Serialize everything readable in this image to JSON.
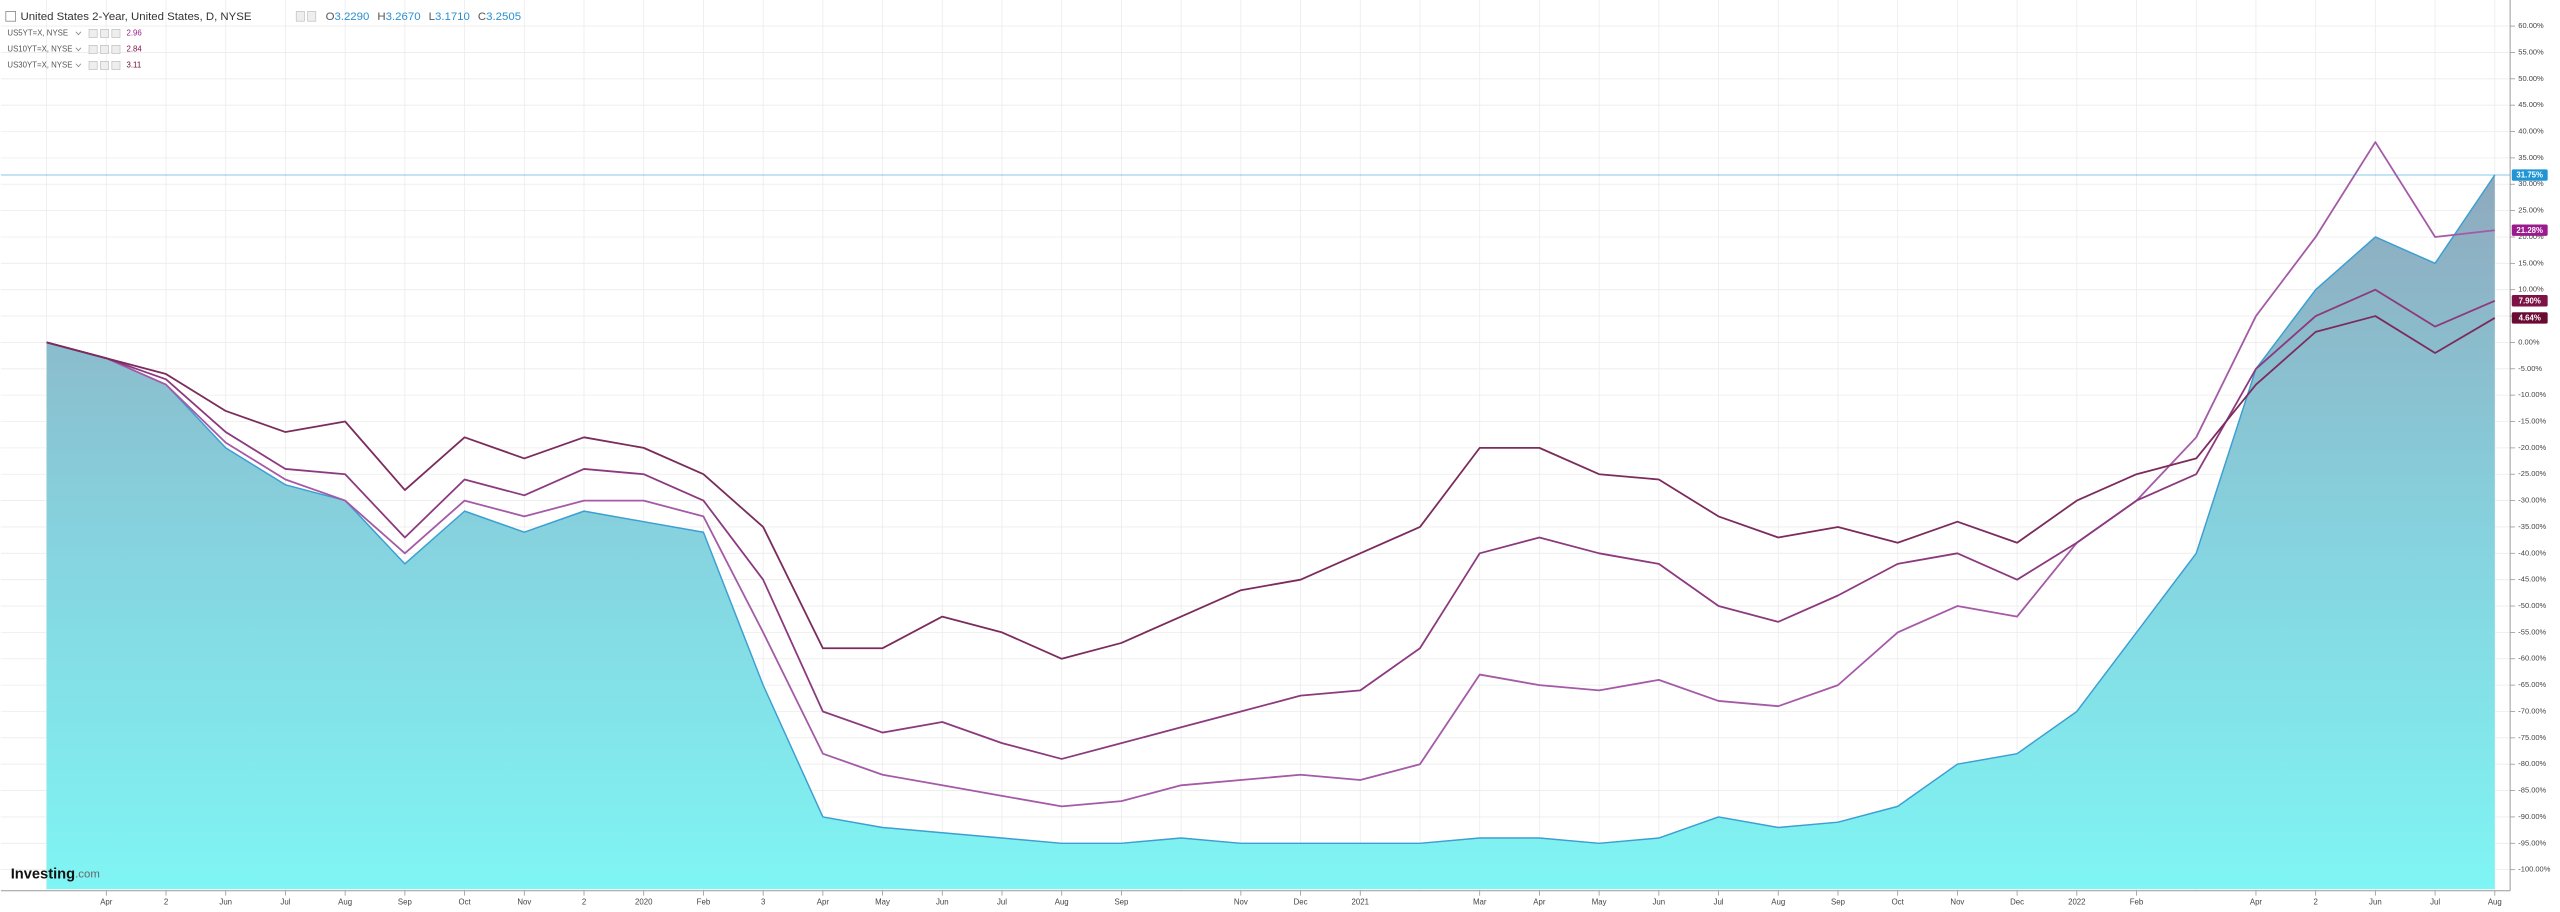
{
  "chart_data": {
    "type": "line",
    "title": "United States 2-Year, United States, D, NYSE",
    "quote": [
      {
        "label": "O",
        "value": "3.2290"
      },
      {
        "label": "H",
        "value": "3.2670"
      },
      {
        "label": "L",
        "value": "3.1710"
      },
      {
        "label": "C",
        "value": "3.2505"
      }
    ],
    "logo": {
      "name": "Investing",
      "suffix": ".com"
    },
    "categories": [
      null,
      "Apr",
      "2",
      "Jun",
      "Jul",
      "Aug",
      "Sep",
      "Oct",
      "Nov",
      "2",
      "2020",
      "Feb",
      "3",
      "Apr",
      "May",
      "Jun",
      "Jul",
      "Aug",
      "Sep",
      null,
      "Nov",
      "Dec",
      "2021",
      null,
      "Mar",
      "Apr",
      "May",
      "Jun",
      "Jul",
      "Aug",
      "Sep",
      "Oct",
      "Nov",
      "Dec",
      "2022",
      "Feb",
      null,
      "Apr",
      "2",
      "Jun",
      "Jul",
      "Aug"
    ],
    "series": [
      {
        "name": "United States 2-Year",
        "area": true,
        "color": "#3b9fd2",
        "values": [
          0,
          -3,
          -8,
          -20,
          -27,
          -30,
          -42,
          -32,
          -36,
          -32,
          -34,
          -36,
          -65,
          -90,
          -92,
          -93,
          -94,
          -95,
          -95,
          -94,
          -95,
          -95,
          -95,
          -95,
          -94,
          -94,
          -95,
          -94,
          -90,
          -92,
          -91,
          -88,
          -80,
          -78,
          -70,
          -55,
          -40,
          -5,
          10,
          20,
          15,
          31.75
        ],
        "value_labels": [
          null,
          null,
          null,
          null,
          null,
          null,
          null,
          null,
          null,
          null,
          null,
          null,
          null,
          null,
          null,
          null,
          null,
          null,
          null,
          null,
          null,
          null,
          null,
          null,
          null,
          null,
          null,
          null,
          null,
          null,
          null,
          null,
          null,
          null,
          null,
          null,
          null,
          null,
          null,
          null,
          null,
          "31.75%"
        ],
        "badge_color": "#1f95d6"
      },
      {
        "name": "US5YT=X, NYSE",
        "last": 2.96,
        "color": "#a45aa6",
        "values": [
          0,
          -3,
          -8,
          -19,
          -26,
          -30,
          -40,
          -30,
          -33,
          -30,
          -30,
          -33,
          -55,
          -78,
          -82,
          -84,
          -86,
          -88,
          -87,
          -84,
          -83,
          -82,
          -83,
          -80,
          -63,
          -65,
          -66,
          -64,
          -68,
          -69,
          -65,
          -55,
          -50,
          -52,
          -38,
          -30,
          -18,
          5,
          20,
          38,
          20,
          21.28
        ],
        "value_labels": [
          null,
          null,
          null,
          null,
          null,
          null,
          null,
          null,
          null,
          null,
          null,
          null,
          null,
          null,
          null,
          null,
          null,
          null,
          null,
          null,
          null,
          null,
          null,
          null,
          null,
          null,
          null,
          null,
          null,
          null,
          null,
          null,
          null,
          null,
          null,
          null,
          null,
          null,
          null,
          null,
          null,
          "21.28%"
        ],
        "badge_color": "#9b1b8e"
      },
      {
        "name": "US10YT=X, NYSE",
        "last": 2.84,
        "color": "#8c3a7e",
        "values": [
          0,
          -3,
          -7,
          -17,
          -24,
          -25,
          -37,
          -26,
          -29,
          -24,
          -25,
          -30,
          -45,
          -70,
          -74,
          -72,
          -76,
          -79,
          -76,
          -73,
          -70,
          -67,
          -66,
          -58,
          -40,
          -37,
          -40,
          -42,
          -50,
          -53,
          -48,
          -42,
          -40,
          -45,
          -38,
          -30,
          -25,
          -5,
          5,
          10,
          3,
          7.9
        ],
        "value_labels": [
          null,
          null,
          null,
          null,
          null,
          null,
          null,
          null,
          null,
          null,
          null,
          null,
          null,
          null,
          null,
          null,
          null,
          null,
          null,
          null,
          null,
          null,
          null,
          null,
          null,
          null,
          null,
          null,
          null,
          null,
          null,
          null,
          null,
          null,
          null,
          null,
          null,
          null,
          null,
          null,
          null,
          "7.90%"
        ],
        "badge_color": "#7c1245"
      },
      {
        "name": "US30YT=X, NYSE",
        "last": 3.11,
        "color": "#7b2b5c",
        "values": [
          0,
          -3,
          -6,
          -13,
          -17,
          -15,
          -28,
          -18,
          -22,
          -18,
          -20,
          -25,
          -35,
          -58,
          -58,
          -52,
          -55,
          -60,
          -57,
          -52,
          -47,
          -45,
          -40,
          -35,
          -20,
          -20,
          -25,
          -26,
          -33,
          -37,
          -35,
          -38,
          -34,
          -38,
          -30,
          -25,
          -22,
          -8,
          2,
          5,
          -2,
          4.64
        ],
        "value_labels": [
          null,
          null,
          null,
          null,
          null,
          null,
          null,
          null,
          null,
          null,
          null,
          null,
          null,
          null,
          null,
          null,
          null,
          null,
          null,
          null,
          null,
          null,
          null,
          null,
          null,
          null,
          null,
          null,
          null,
          null,
          null,
          null,
          null,
          null,
          null,
          null,
          null,
          null,
          null,
          null,
          null,
          "4.64%"
        ],
        "badge_color": "#6a0b33"
      }
    ],
    "ylim": [
      -103.7,
      63.4
    ],
    "yticks": [
      {
        "value": -100,
        "label": "-100.00%"
      },
      {
        "value": -95,
        "label": "-95.00%"
      },
      {
        "value": -90,
        "label": "-90.00%"
      },
      {
        "value": -85,
        "label": "-85.00%"
      },
      {
        "value": -80,
        "label": "-80.00%"
      },
      {
        "value": -75,
        "label": "-75.00%"
      },
      {
        "value": -70,
        "label": "-70.00%"
      },
      {
        "value": -65,
        "label": "-65.00%"
      },
      {
        "value": -60,
        "label": "-60.00%"
      },
      {
        "value": -55,
        "label": "-55.00%"
      },
      {
        "value": -50,
        "label": "-50.00%"
      },
      {
        "value": -45,
        "label": "-45.00%"
      },
      {
        "value": -40,
        "label": "-40.00%"
      },
      {
        "value": -35,
        "label": "-35.00%"
      },
      {
        "value": -30,
        "label": "-30.00%"
      },
      {
        "value": -25,
        "label": "-25.00%"
      },
      {
        "value": -20,
        "label": "-20.00%"
      },
      {
        "value": -15,
        "label": "-15.00%"
      },
      {
        "value": -10,
        "label": "-10.00%"
      },
      {
        "value": -5,
        "label": "-5.00%"
      },
      {
        "value": 0,
        "label": "0.00%"
      },
      {
        "value": 5,
        "label": "5.00%"
      },
      {
        "value": 10,
        "label": "10.00%"
      },
      {
        "value": 15,
        "label": "15.00%"
      },
      {
        "value": 20,
        "label": "20.00%"
      },
      {
        "value": 25,
        "label": "25.00%"
      },
      {
        "value": 30,
        "label": "30.00%"
      },
      {
        "value": 35,
        "label": "35.00%"
      },
      {
        "value": 40,
        "label": "40.00%"
      },
      {
        "value": 45,
        "label": "45.00%"
      },
      {
        "value": 50,
        "label": "50.00%"
      },
      {
        "value": 55,
        "label": "55.00%"
      },
      {
        "value": 60,
        "label": "60.00%"
      }
    ],
    "grid": true
  }
}
